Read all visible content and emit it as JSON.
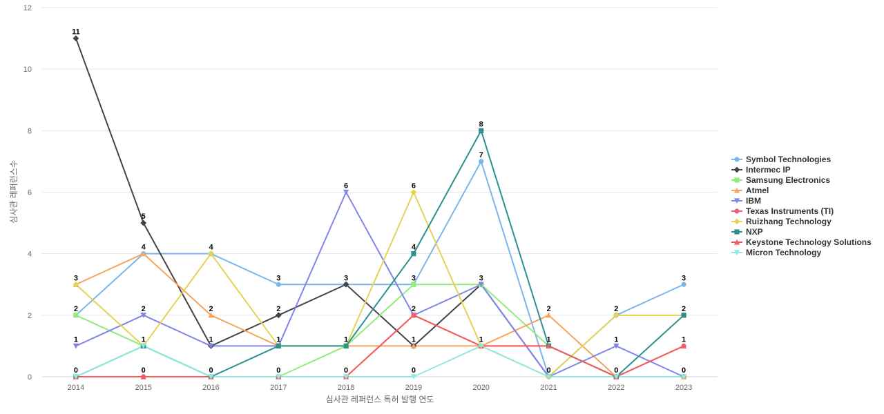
{
  "chart_data": {
    "type": "line",
    "xlabel": "심사관 레퍼런스 특허 발행 연도",
    "ylabel": "심사관 레퍼런스수",
    "ylim": [
      0,
      12
    ],
    "yticks": [
      0,
      2,
      4,
      6,
      8,
      10,
      12
    ],
    "x": [
      "2014",
      "2015",
      "2016",
      "2017",
      "2018",
      "2019",
      "2020",
      "2021",
      "2022",
      "2023"
    ],
    "legend_position": "right",
    "grid": true,
    "series": [
      {
        "name": "Symbol Technologies",
        "color": "#7cb5ec",
        "marker": "circle",
        "values": [
          2,
          4,
          4,
          3,
          3,
          3,
          7,
          0,
          2,
          3
        ]
      },
      {
        "name": "Intermec IP",
        "color": "#434348",
        "marker": "diamond",
        "values": [
          11,
          5,
          1,
          2,
          3,
          1,
          3,
          0,
          0,
          0
        ]
      },
      {
        "name": "Samsung Electronics",
        "color": "#90ed7d",
        "marker": "square",
        "values": [
          2,
          1,
          0,
          0,
          1,
          3,
          3,
          1,
          0,
          0
        ]
      },
      {
        "name": "Atmel",
        "color": "#f7a35c",
        "marker": "triangle",
        "values": [
          3,
          4,
          2,
          1,
          1,
          1,
          1,
          2,
          0,
          0
        ]
      },
      {
        "name": "IBM",
        "color": "#8085e9",
        "marker": "triangle-down",
        "values": [
          1,
          2,
          1,
          1,
          6,
          2,
          3,
          0,
          1,
          0
        ]
      },
      {
        "name": "Texas Instruments (TI)",
        "color": "#f15c80",
        "marker": "circle",
        "values": [
          0,
          0,
          0,
          0,
          0,
          2,
          1,
          1,
          0,
          1
        ]
      },
      {
        "name": "Ruizhang Technology",
        "color": "#e4d354",
        "marker": "diamond",
        "values": [
          3,
          1,
          4,
          1,
          1,
          6,
          1,
          0,
          2,
          2
        ]
      },
      {
        "name": "NXP",
        "color": "#2b908f",
        "marker": "square",
        "values": [
          0,
          1,
          0,
          1,
          1,
          4,
          8,
          1,
          0,
          2
        ]
      },
      {
        "name": "Keystone Technology Solutions",
        "color": "#f45b5b",
        "marker": "triangle",
        "values": [
          0,
          0,
          0,
          0,
          0,
          2,
          1,
          1,
          0,
          1
        ]
      },
      {
        "name": "Micron Technology",
        "color": "#91e8e1",
        "marker": "triangle-down",
        "values": [
          0,
          1,
          0,
          0,
          0,
          0,
          1,
          0,
          0,
          0
        ]
      }
    ],
    "data_labels": [
      {
        "x": "2014",
        "labels": [
          "11",
          "3",
          "2",
          "1",
          "0"
        ]
      },
      {
        "x": "2015",
        "labels": [
          "5",
          "4",
          "2",
          "1",
          "0"
        ]
      },
      {
        "x": "2016",
        "labels": [
          "4",
          "2",
          "1",
          "0"
        ]
      },
      {
        "x": "2017",
        "labels": [
          "3",
          "2",
          "1",
          "0"
        ]
      },
      {
        "x": "2018",
        "labels": [
          "6",
          "3",
          "1",
          "0"
        ]
      },
      {
        "x": "2019",
        "labels": [
          "6",
          "4",
          "3",
          "2",
          "1",
          "0"
        ]
      },
      {
        "x": "2020",
        "labels": [
          "8",
          "7",
          "3",
          "1"
        ]
      },
      {
        "x": "2021",
        "labels": [
          "2",
          "1",
          "0"
        ]
      },
      {
        "x": "2022",
        "labels": [
          "2",
          "1",
          "0"
        ]
      },
      {
        "x": "2023",
        "labels": [
          "3",
          "2",
          "1",
          "0"
        ]
      }
    ]
  }
}
